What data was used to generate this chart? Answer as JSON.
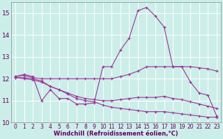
{
  "xlabel": "Windchill (Refroidissement éolien,°C)",
  "background_color": "#cceee8",
  "grid_color": "#aaddcc",
  "line_color": "#993399",
  "x": [
    0,
    1,
    2,
    3,
    4,
    5,
    6,
    7,
    8,
    9,
    10,
    11,
    12,
    13,
    14,
    15,
    16,
    17,
    18,
    19,
    20,
    21,
    22,
    23
  ],
  "line1": [
    12.1,
    12.2,
    12.1,
    11.0,
    11.5,
    11.1,
    11.1,
    10.85,
    10.85,
    10.9,
    12.55,
    12.55,
    13.3,
    13.85,
    15.1,
    15.25,
    14.85,
    14.35,
    12.55,
    12.55,
    11.85,
    11.35,
    11.25,
    10.3
  ],
  "line2": [
    12.1,
    12.15,
    12.05,
    12.0,
    12.0,
    12.0,
    12.0,
    12.0,
    12.0,
    12.0,
    12.0,
    12.0,
    12.1,
    12.2,
    12.35,
    12.55,
    12.55,
    12.55,
    12.55,
    12.55,
    12.55,
    12.5,
    12.45,
    12.35
  ],
  "line3": [
    12.05,
    12.05,
    12.0,
    11.9,
    11.65,
    11.5,
    11.35,
    11.2,
    11.1,
    11.05,
    11.0,
    11.0,
    11.05,
    11.1,
    11.15,
    11.15,
    11.15,
    11.2,
    11.1,
    11.05,
    10.95,
    10.85,
    10.75,
    10.65
  ],
  "line4": [
    12.05,
    12.0,
    11.95,
    11.85,
    11.65,
    11.5,
    11.3,
    11.1,
    11.0,
    10.95,
    10.8,
    10.7,
    10.65,
    10.6,
    10.55,
    10.5,
    10.5,
    10.5,
    10.45,
    10.4,
    10.35,
    10.3,
    10.25,
    10.25
  ],
  "ylim": [
    10,
    15.5
  ],
  "yticks": [
    10,
    11,
    12,
    13,
    14,
    15
  ],
  "xticks": [
    0,
    1,
    2,
    3,
    4,
    5,
    6,
    7,
    8,
    9,
    10,
    11,
    12,
    13,
    14,
    15,
    16,
    17,
    18,
    19,
    20,
    21,
    22,
    23
  ]
}
